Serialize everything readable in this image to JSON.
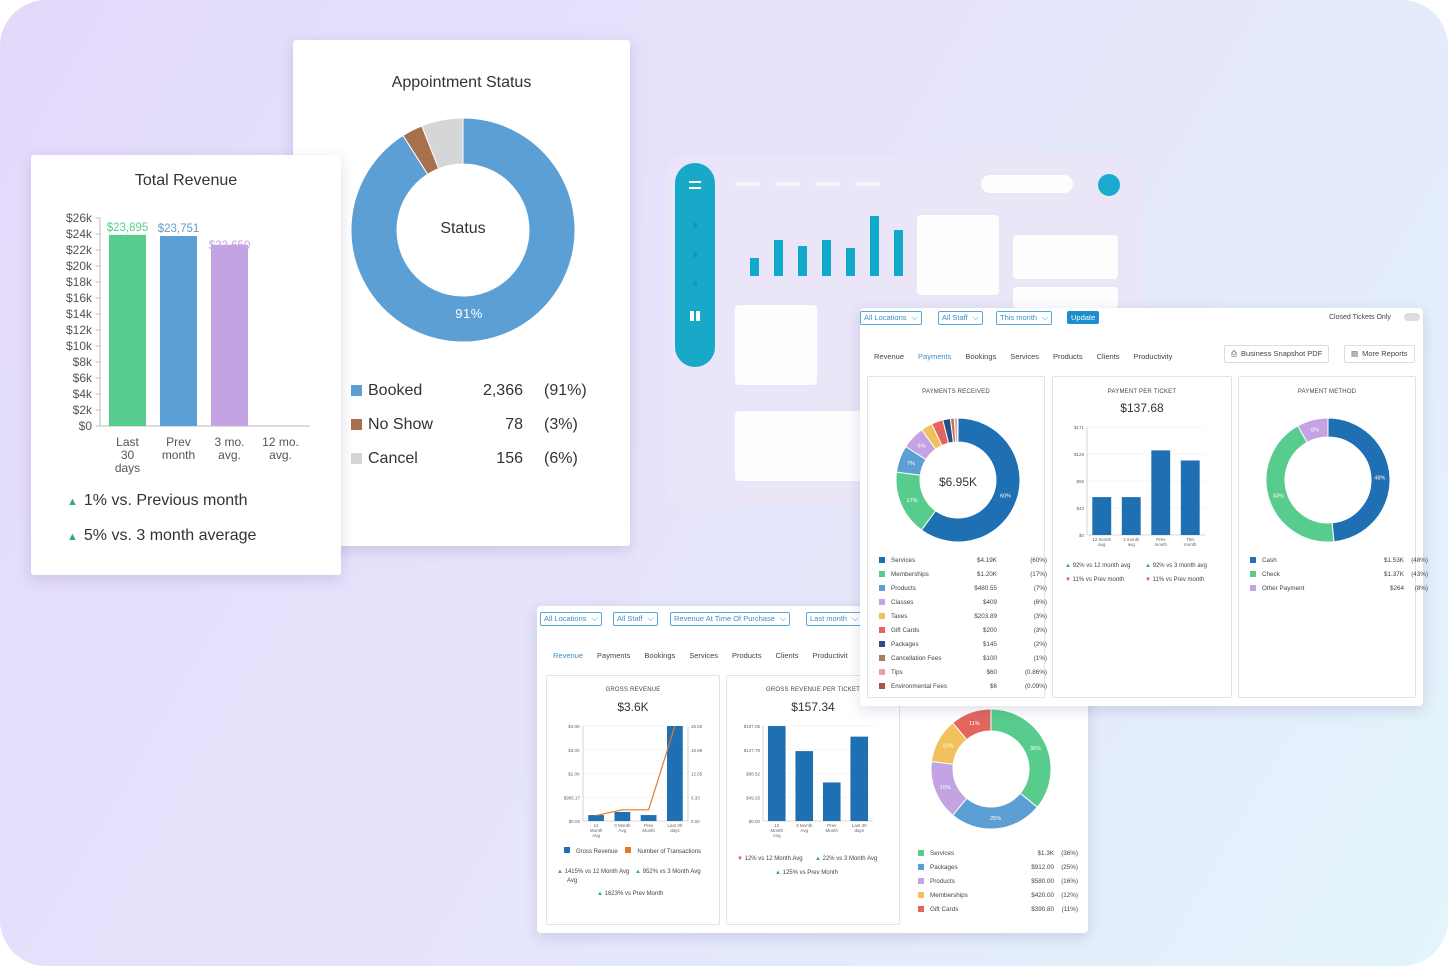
{
  "colors": {
    "green": "#58cc8c",
    "blue": "#5b9fd5",
    "purple": "#c4a3e2",
    "brown": "#a8704c",
    "grey": "#d6d6d6",
    "teal": "#06a6c8",
    "dark_blue": "#1f6fb3",
    "orange": "#e07b2c",
    "up_arrow": "#3aa86a",
    "down_arrow": "#d9534f"
  },
  "total_revenue": {
    "title": "Total Revenue",
    "chart_data": {
      "type": "bar",
      "title": "Total Revenue",
      "categories": [
        "Last 30 days",
        "Prev month",
        "3 mo. avg.",
        "12 mo. avg."
      ],
      "values": [
        23895,
        23751,
        22650,
        0
      ],
      "labels": [
        "$23,895",
        "$23,751",
        "$22,650",
        ""
      ],
      "y_ticks": [
        "$26k",
        "$24k",
        "$22k",
        "$20k",
        "$18k",
        "$16k",
        "$14k",
        "$12k",
        "$10k",
        "$8k",
        "$6k",
        "$4k",
        "$2k",
        "$0"
      ],
      "ylim": [
        0,
        26000
      ]
    },
    "cat_lines": [
      [
        "Last",
        "30",
        "days"
      ],
      [
        "Prev",
        "month"
      ],
      [
        "3 mo.",
        "avg."
      ],
      [
        "12 mo.",
        "avg."
      ]
    ],
    "stat1": "1% vs. Previous month",
    "stat2": "5% vs. 3 month average"
  },
  "appointment_status": {
    "title": "Appointment Status",
    "center_label": "Status",
    "big_pct_label": "91%",
    "chart_data": {
      "type": "pie",
      "categories": [
        "Booked",
        "No Show",
        "Cancel"
      ],
      "values": [
        2366,
        78,
        156
      ]
    },
    "rows": [
      {
        "label": "Booked",
        "count": "2,366",
        "pct": "(91%)"
      },
      {
        "label": "No Show",
        "count": "78",
        "pct": "(3%)"
      },
      {
        "label": "Cancel",
        "count": "156",
        "pct": "(6%)"
      }
    ]
  },
  "payments_panel": {
    "filters": [
      "All Locations",
      "All Staff",
      "This month"
    ],
    "update": "Update",
    "closed_tickets": "Closed Tickets Only",
    "tabs": [
      "Revenue",
      "Payments",
      "Bookings",
      "Services",
      "Products",
      "Clients",
      "Productivity"
    ],
    "active_tab": 1,
    "snapshot_btn": "Business Snapshot PDF",
    "more_reports_btn": "More Reports",
    "received": {
      "title": "PAYMENTS RECEIVED",
      "center": "$6.95K",
      "donut_labels": [
        "60%",
        "17%",
        "7%",
        "6%"
      ],
      "chart_data": {
        "type": "pie",
        "categories": [
          "Services",
          "Memberships",
          "Products",
          "Classes",
          "Taxes",
          "Gift Cards",
          "Packages",
          "Cancellation Fees",
          "Tips",
          "Environmental Fees"
        ],
        "values": [
          60,
          17,
          7,
          6,
          3,
          3,
          2,
          1,
          0.86,
          0.09
        ]
      },
      "legend": [
        {
          "name": "Services",
          "amount": "$4.19K",
          "pct": "(60%)"
        },
        {
          "name": "Memberships",
          "amount": "$1.20K",
          "pct": "(17%)"
        },
        {
          "name": "Products",
          "amount": "$480.55",
          "pct": "(7%)"
        },
        {
          "name": "Classes",
          "amount": "$409",
          "pct": "(6%)"
        },
        {
          "name": "Taxes",
          "amount": "$203.89",
          "pct": "(3%)"
        },
        {
          "name": "Gift Cards",
          "amount": "$200",
          "pct": "(3%)"
        },
        {
          "name": "Packages",
          "amount": "$145",
          "pct": "(2%)"
        },
        {
          "name": "Cancellation Fees",
          "amount": "$100",
          "pct": "(1%)"
        },
        {
          "name": "Tips",
          "amount": "$60",
          "pct": "(0.86%)"
        },
        {
          "name": "Environmental Fees",
          "amount": "$6",
          "pct": "(0.09%)"
        }
      ]
    },
    "per_ticket": {
      "title": "PAYMENT PER TICKET",
      "value": "$137.68",
      "chart_data": {
        "type": "bar",
        "categories": [
          "12 month avg",
          "3 month avg",
          "Prev month",
          "This month"
        ],
        "values": [
          60,
          60,
          134,
          118
        ],
        "y_ticks": [
          "$171",
          "$128",
          "$85",
          "$43",
          "$0"
        ],
        "ylim": [
          0,
          171
        ]
      },
      "cat_lines": [
        [
          "12 month",
          "avg"
        ],
        [
          "3 month",
          "avg"
        ],
        [
          "Prev",
          "month"
        ],
        [
          "This",
          "month"
        ]
      ],
      "stats": [
        "92% vs 12 month avg",
        "92% vs 3 month avg",
        "11% vs Prev month",
        "11% vs Prev month"
      ]
    },
    "method": {
      "title": "PAYMENT METHOD",
      "donut_labels": [
        "48%",
        "43%",
        "8%"
      ],
      "chart_data": {
        "type": "pie",
        "categories": [
          "Cash",
          "Check",
          "Other Payment"
        ],
        "values": [
          48,
          43,
          8
        ]
      },
      "legend": [
        {
          "name": "Cash",
          "amount": "$1.53K",
          "pct": "(48%)"
        },
        {
          "name": "Check",
          "amount": "$1.37K",
          "pct": "(43%)"
        },
        {
          "name": "Other Payment",
          "amount": "$264",
          "pct": "(8%)"
        }
      ]
    }
  },
  "revenue_panel": {
    "filters": [
      "All Locations",
      "All Staff",
      "Revenue At Time Of Purchase",
      "Last month"
    ],
    "tabs": [
      "Revenue",
      "Payments",
      "Bookings",
      "Services",
      "Products",
      "Clients",
      "Productivit"
    ],
    "active_tab": 0,
    "gross": {
      "title": "GROSS REVENUE",
      "value": "$3.6K",
      "chart_data": {
        "type": "bar",
        "categories": [
          "12 Month Avg",
          "3 Month Avg",
          "Prev Month",
          "Last 30 days"
        ],
        "series": [
          {
            "name": "Gross Revenue",
            "values": [
              250,
              380,
              250,
              4000
            ]
          },
          {
            "name": "Number of Transactions",
            "values": [
              1.5,
              3,
              3,
              25.5
            ]
          }
        ],
        "y_ticks": [
          "$4.0K",
          "$3.0K",
          "$2.0K",
          "$995.17",
          "$0.00"
        ],
        "y2_ticks": [
          "25.50",
          "18.98",
          "12.65",
          "6.33",
          "0.00"
        ]
      },
      "cat_lines": [
        [
          "12",
          "Month",
          "Avg"
        ],
        [
          "3 Month",
          "Avg"
        ],
        [
          "Prev",
          "Month"
        ],
        [
          "Last 30",
          "days"
        ]
      ],
      "stats": [
        "1415% vs 12 Month Avg",
        "952% vs 3 Month Avg",
        "1623% vs Prev Month"
      ]
    },
    "per_ticket": {
      "title": "GROSS REVENUE PER TICKET",
      "value": "$157.34",
      "chart_data": {
        "type": "bar",
        "categories": [
          "12 Month Avg",
          "3 Month Avg",
          "Prev Month",
          "Last 30 days"
        ],
        "values": [
          197,
          145,
          80,
          175
        ],
        "y_ticks": [
          "$197.05",
          "$147.79",
          "$98.52",
          "$49.26",
          "$0.00"
        ],
        "ylim": [
          0,
          197.05
        ]
      },
      "cat_lines": [
        [
          "12",
          "Month",
          "Avg"
        ],
        [
          "3 Month",
          "Avg"
        ],
        [
          "Prev",
          "Month"
        ],
        [
          "Last 30",
          "days"
        ]
      ],
      "stats": [
        "12% vs 12 Month Avg",
        "22% vs 3 Month Avg",
        "125% vs Prev Month"
      ]
    },
    "categories": {
      "donut_labels": [
        "36%",
        "25%",
        "16%",
        "12%",
        "11%"
      ],
      "chart_data": {
        "type": "pie",
        "categories": [
          "Services",
          "Packages",
          "Products",
          "Memberships",
          "Gift Cards"
        ],
        "values": [
          36,
          25,
          16,
          12,
          11
        ]
      },
      "legend": [
        {
          "name": "Services",
          "amount": "$1.3K",
          "pct": "(36%)"
        },
        {
          "name": "Packages",
          "amount": "$912.00",
          "pct": "(25%)"
        },
        {
          "name": "Products",
          "amount": "$580.00",
          "pct": "(16%)"
        },
        {
          "name": "Memberships",
          "amount": "$420.00",
          "pct": "(12%)"
        },
        {
          "name": "Gift Cards",
          "amount": "$390.80",
          "pct": "(11%)"
        }
      ]
    }
  },
  "mockup": {
    "chart_data": {
      "type": "bar",
      "values": [
        18,
        36,
        30,
        36,
        28,
        60,
        46
      ]
    }
  }
}
